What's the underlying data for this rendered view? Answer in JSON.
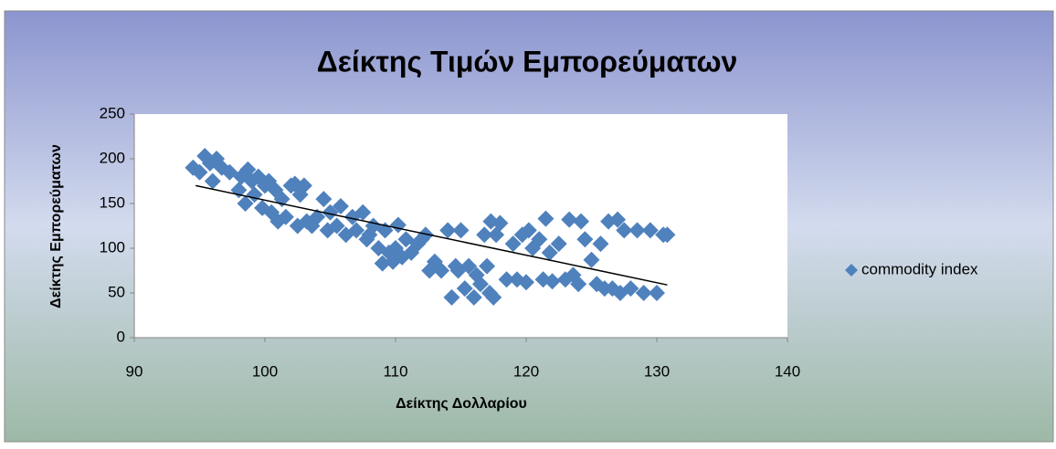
{
  "chart_data": {
    "type": "scatter",
    "title": "Δείκτης Τιμών Εμπορεύματων",
    "x_label": "Δείκτης Δολλαρίου",
    "y_label": "Δείκτης Εμπορεύματων",
    "xlim": [
      90,
      140
    ],
    "xticks": [
      90,
      100,
      110,
      120,
      130,
      140
    ],
    "ylim": [
      0,
      250
    ],
    "yticks": [
      0,
      50,
      100,
      150,
      200,
      250
    ],
    "grid": false,
    "legend": "right",
    "series": [
      {
        "name": "commodity index",
        "color": "#4f81bd",
        "x": [
          94.5,
          95,
          95.4,
          95.8,
          96,
          96.3,
          96.7,
          97.3,
          98,
          98.2,
          98.5,
          98.7,
          99,
          99.2,
          99.5,
          99.8,
          100,
          100.3,
          100.5,
          100.8,
          101,
          101.3,
          101.6,
          102,
          102.3,
          102.5,
          102.7,
          103,
          103.2,
          103.6,
          104,
          104.5,
          104.8,
          105,
          105.5,
          105.8,
          106.2,
          106.7,
          107,
          107.5,
          107.8,
          108,
          108.3,
          108.7,
          109,
          109.2,
          109.5,
          109.8,
          110,
          110.2,
          110.5,
          110.8,
          111.2,
          111.7,
          112,
          112.3,
          112.6,
          113,
          113.5,
          114,
          114.3,
          114.6,
          114.8,
          115,
          115.3,
          115.6,
          116,
          116.2,
          116.5,
          116.8,
          117,
          117.2,
          117.3,
          117.5,
          117.7,
          118,
          118.5,
          119,
          119.3,
          119.7,
          120,
          120.2,
          120.5,
          121,
          121.3,
          121.5,
          121.8,
          122,
          122.5,
          123,
          123.3,
          123.6,
          124,
          124.2,
          124.5,
          125,
          125.4,
          125.7,
          126,
          126.3,
          126.6,
          127,
          127.2,
          127.5,
          128,
          128.5,
          129,
          129.5,
          130,
          130.5,
          130.8
        ],
        "values": [
          190,
          185,
          203,
          195,
          175,
          200,
          190,
          185,
          165,
          180,
          150,
          188,
          175,
          160,
          180,
          145,
          170,
          175,
          140,
          165,
          130,
          155,
          135,
          170,
          172,
          125,
          160,
          170,
          130,
          125,
          135,
          155,
          120,
          140,
          125,
          147,
          115,
          135,
          120,
          140,
          110,
          115,
          125,
          100,
          83,
          120,
          95,
          85,
          100,
          126,
          90,
          110,
          95,
          105,
          110,
          115,
          75,
          85,
          75,
          120,
          45,
          80,
          75,
          120,
          55,
          80,
          45,
          70,
          60,
          115,
          80,
          50,
          130,
          45,
          115,
          128,
          65,
          105,
          65,
          115,
          62,
          120,
          100,
          110,
          65,
          133,
          95,
          63,
          105,
          65,
          132,
          70,
          60,
          130,
          110,
          87,
          60,
          105,
          55,
          130,
          55,
          132,
          50,
          120,
          55,
          120,
          50,
          120,
          50,
          115,
          115
        ]
      }
    ],
    "trendline": {
      "color": "#000000",
      "x": [
        94.7,
        130.8
      ],
      "values": [
        170,
        59
      ]
    }
  }
}
